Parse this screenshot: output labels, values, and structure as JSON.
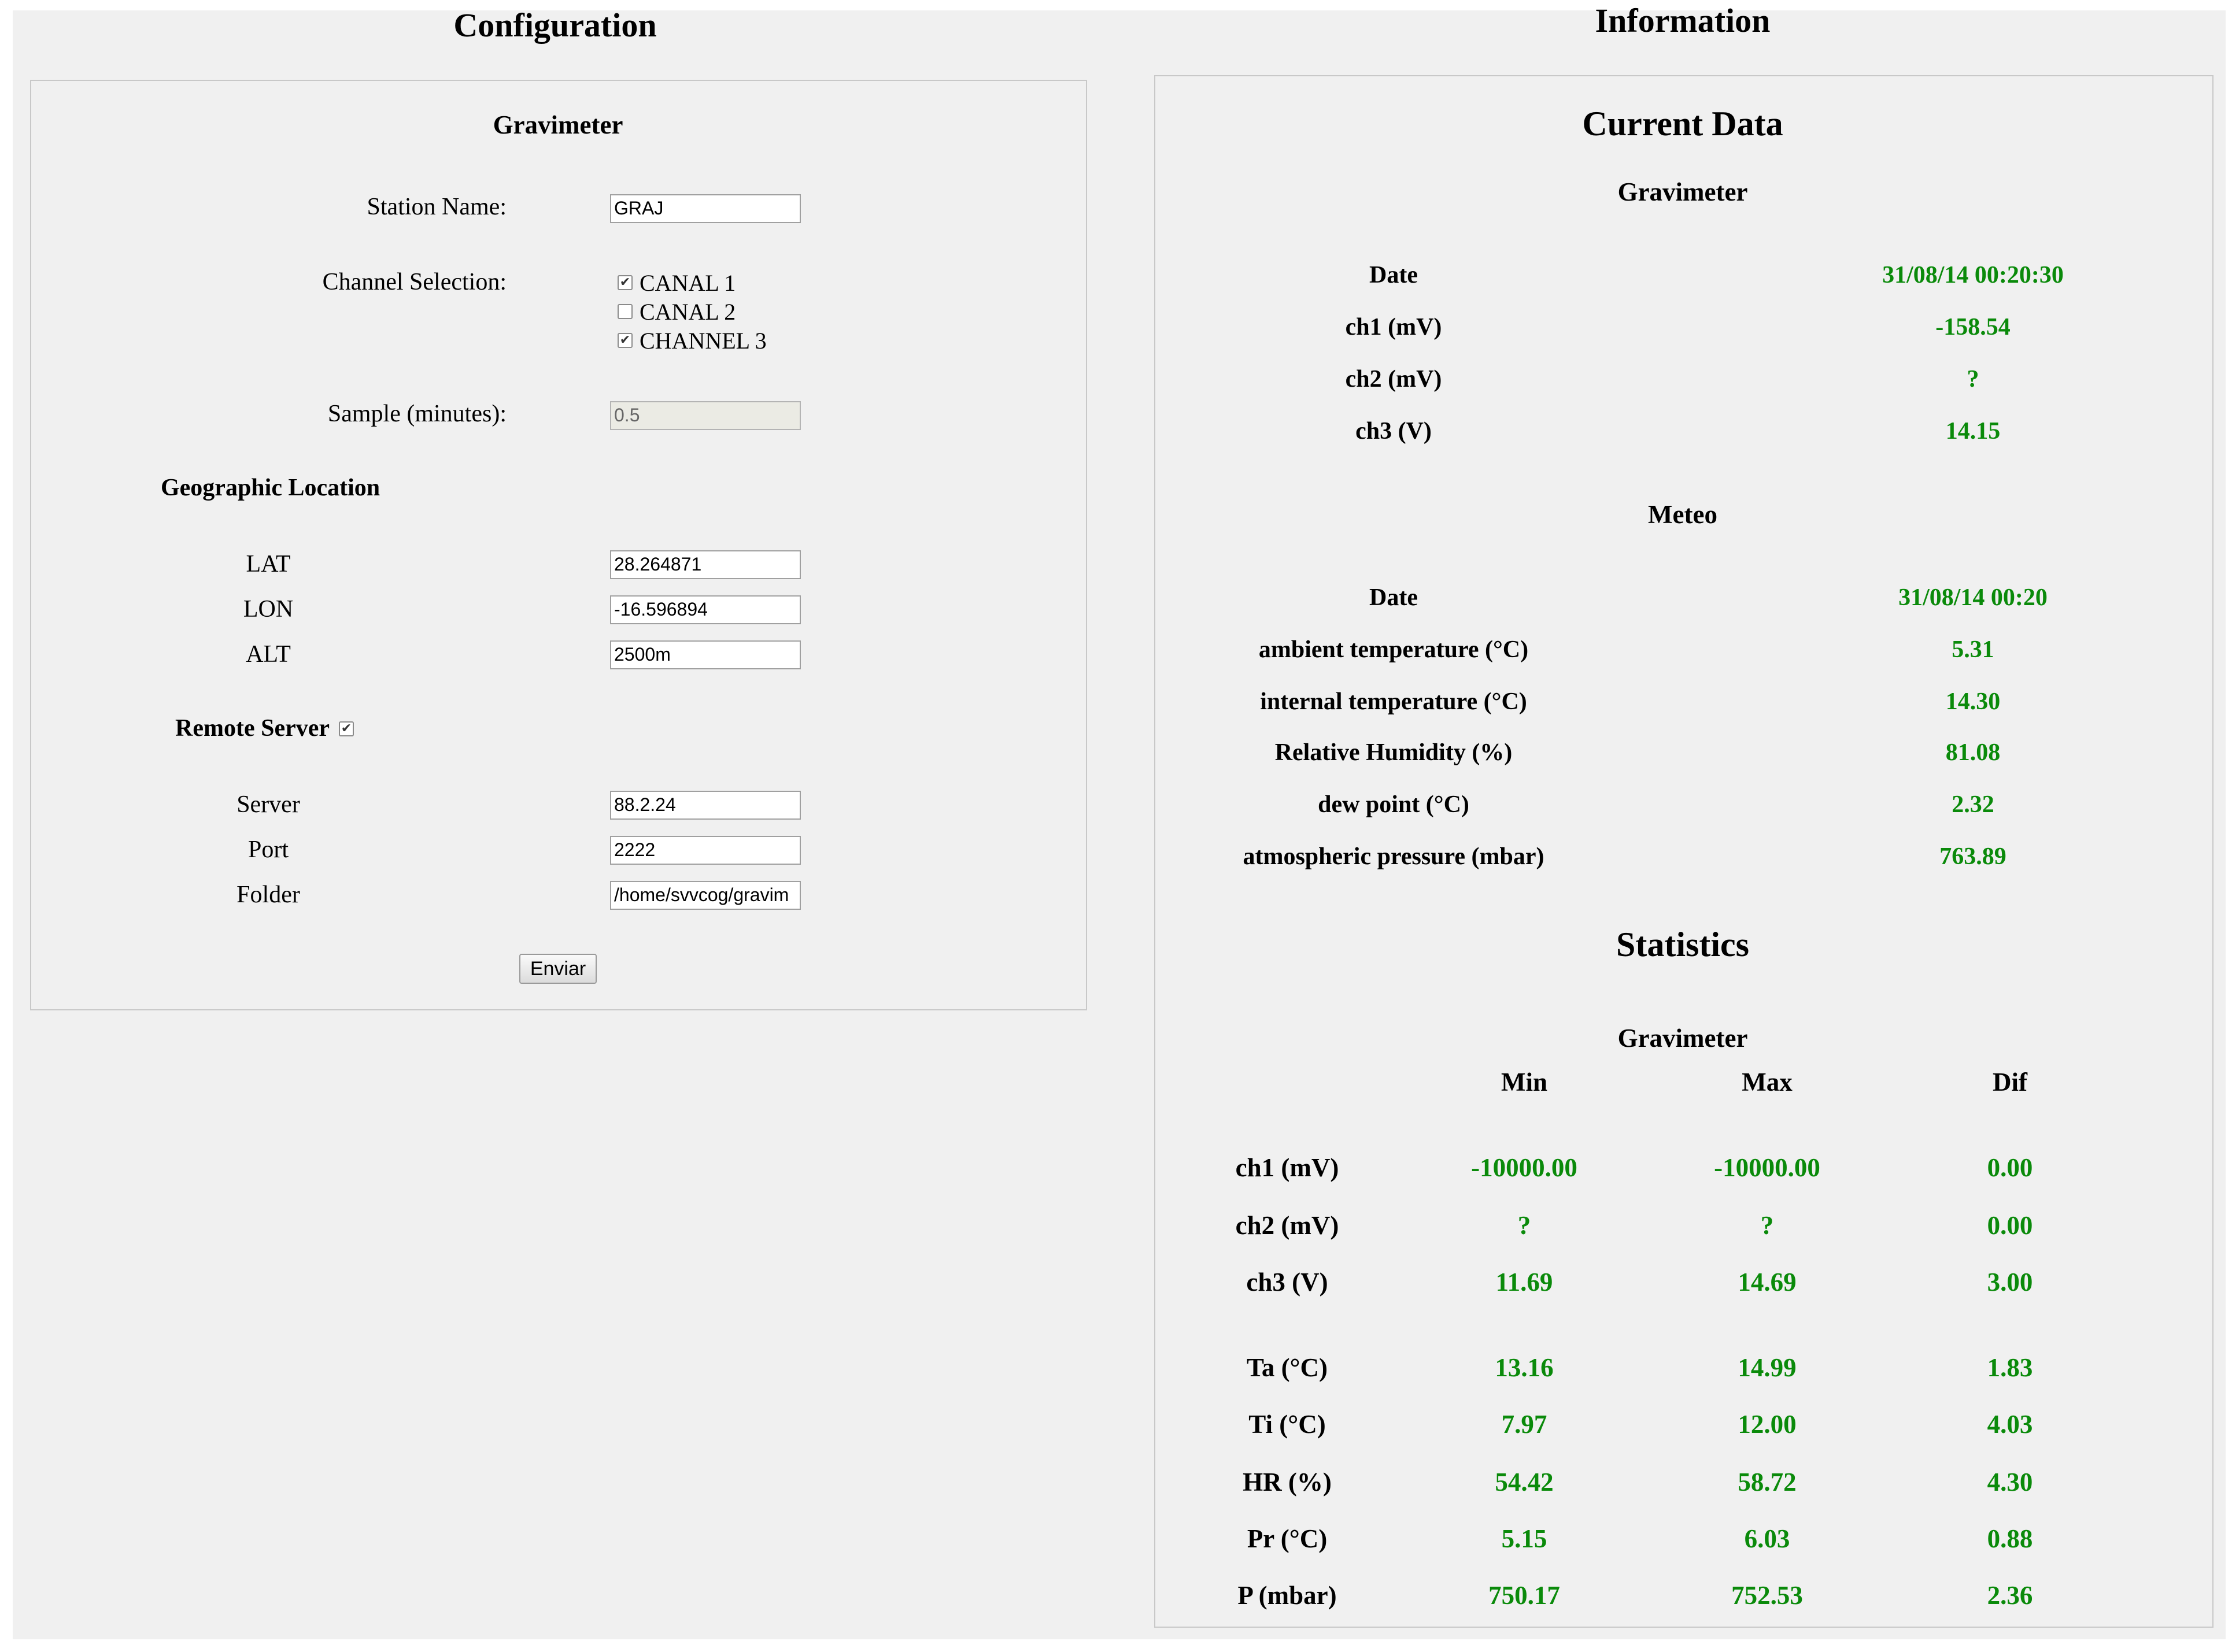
{
  "colors": {
    "value": "#0a8a0a",
    "background": "#f0f0f0",
    "border": "#c8c8c8"
  },
  "config": {
    "heading": "Configuration",
    "gravimeter_title": "Gravimeter",
    "station_name_label": "Station Name:",
    "station_name_value": "GRAJ",
    "channel_selection_label": "Channel Selection:",
    "channels": [
      {
        "label": "CANAL 1",
        "checked": true
      },
      {
        "label": "CANAL 2",
        "checked": false
      },
      {
        "label": "CHANNEL 3",
        "checked": true
      }
    ],
    "sample_label": "Sample (minutes):",
    "sample_value": "0.5",
    "geo_title": "Geographic Location",
    "lat_label": "LAT",
    "lat_value": "28.264871",
    "lon_label": "LON",
    "lon_value": "-16.596894",
    "alt_label": "ALT",
    "alt_value": "2500m",
    "remote_server_label": "Remote Server",
    "remote_server_checked": true,
    "server_label": "Server",
    "server_value": "88.2.24",
    "port_label": "Port",
    "port_value": "2222",
    "folder_label": "Folder",
    "folder_value": "/home/svvcog/gravim",
    "submit_label": "Enviar"
  },
  "info": {
    "heading": "Information",
    "current_title": "Current Data",
    "grav_title": "Gravimeter",
    "grav_rows": [
      {
        "label": "Date",
        "value": "31/08/14  00:20:30"
      },
      {
        "label": "ch1 (mV)",
        "value": "-158.54"
      },
      {
        "label": "ch2 (mV)",
        "value": "?"
      },
      {
        "label": "ch3 (V)",
        "value": "14.15"
      }
    ],
    "meteo_title": "Meteo",
    "meteo_rows": [
      {
        "label": "Date",
        "value": "31/08/14  00:20"
      },
      {
        "label": "ambient temperature (°C)",
        "value": "5.31"
      },
      {
        "label": "internal temperature (°C)",
        "value": "14.30"
      },
      {
        "label": "Relative Humidity (%)",
        "value": "81.08"
      },
      {
        "label": "dew point (°C)",
        "value": "2.32"
      },
      {
        "label": "atmospheric pressure (mbar)",
        "value": "763.89"
      }
    ],
    "stats_title": "Statistics",
    "stats_grav_title": "Gravimeter",
    "stats_headers": {
      "min": "Min",
      "max": "Max",
      "dif": "Dif"
    },
    "stats_rows": [
      {
        "label": "ch1 (mV)",
        "min": "-10000.00",
        "max": "-10000.00",
        "dif": "0.00"
      },
      {
        "label": "ch2 (mV)",
        "min": "?",
        "max": "?",
        "dif": "0.00"
      },
      {
        "label": "ch3 (V)",
        "min": "11.69",
        "max": "14.69",
        "dif": "3.00"
      },
      {
        "label": "Ta (°C)",
        "min": "13.16",
        "max": "14.99",
        "dif": "1.83"
      },
      {
        "label": "Ti (°C)",
        "min": "7.97",
        "max": "12.00",
        "dif": "4.03"
      },
      {
        "label": "HR (%)",
        "min": "54.42",
        "max": "58.72",
        "dif": "4.30"
      },
      {
        "label": "Pr (°C)",
        "min": "5.15",
        "max": "6.03",
        "dif": "0.88"
      },
      {
        "label": "P (mbar)",
        "min": "750.17",
        "max": "752.53",
        "dif": "2.36"
      }
    ]
  }
}
